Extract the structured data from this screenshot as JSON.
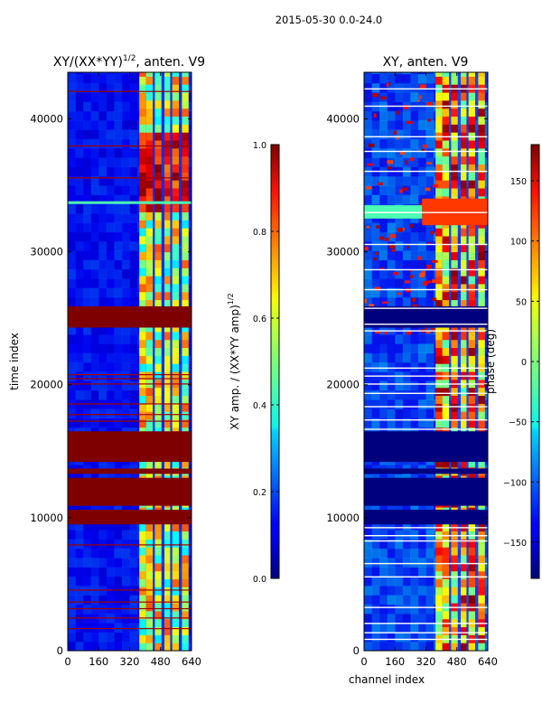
{
  "suptitle": "2015-05-30 0.0-24.0",
  "chart_data": [
    {
      "type": "heatmap",
      "title": "XY/(XX*YY)^1/2, anten. V9",
      "title_main": "XY/(XX*YY)",
      "title_sup": "1/2",
      "title_tail": ", anten. V9",
      "xlabel": "",
      "ylabel": "time index",
      "xlim": [
        0,
        640
      ],
      "ylim": [
        0,
        43500
      ],
      "xticks": [
        0,
        160,
        320,
        480,
        640
      ],
      "yticks": [
        0,
        10000,
        20000,
        30000,
        40000
      ],
      "colormap": "jet",
      "colorbar": {
        "label": "XY amp. / (XX*YY amp)^1/2",
        "label_main": "XY amp. / (XX*YY amp)",
        "label_sup": "1/2",
        "range": [
          0.0,
          1.0
        ],
        "ticks": [
          "0.0",
          "0.2",
          "0.4",
          "0.6",
          "0.8",
          "1.0"
        ]
      },
      "flagged_time_bands": [
        [
          9500,
          10600
        ],
        [
          10900,
          13000
        ],
        [
          13300,
          13700
        ],
        [
          14200,
          16500
        ],
        [
          24300,
          25900
        ]
      ],
      "flagged_time_rows": [
        1700,
        2500,
        3200,
        3700,
        4600,
        8000,
        17300,
        17800,
        18600,
        20100,
        20500,
        20800,
        35600,
        38000,
        42100
      ],
      "bright_channel_range": [
        370,
        640
      ],
      "saturated_time_range": [
        32500,
        38500
      ]
    },
    {
      "type": "heatmap",
      "title": "XY, anten. V9",
      "xlabel": "channel index",
      "ylabel": "",
      "xlim": [
        0,
        640
      ],
      "ylim": [
        0,
        43500
      ],
      "xticks": [
        0,
        160,
        320,
        480,
        640
      ],
      "yticks": [
        0,
        10000,
        20000,
        30000,
        40000
      ],
      "colormap": "jet",
      "colorbar": {
        "label": "phase (deg)",
        "range": [
          -180,
          180
        ],
        "ticks": [
          "−150",
          "−100",
          "−50",
          "0",
          "50",
          "100",
          "150"
        ]
      },
      "flagged_time_bands": [
        [
          9500,
          10600
        ],
        [
          10900,
          13000
        ],
        [
          13300,
          13700
        ],
        [
          14200,
          16500
        ],
        [
          24300,
          25900
        ]
      ],
      "white_time_rows": [
        900,
        1400,
        2100,
        3300,
        5600,
        6600,
        8300,
        8700,
        9300,
        16700,
        17400,
        18400,
        19400,
        20100,
        20700,
        21300,
        24100,
        24600,
        25800,
        27200,
        28700,
        30600,
        33000,
        36100,
        37600,
        38700,
        41000,
        42300
      ],
      "bright_channel_range": [
        370,
        640
      ]
    }
  ]
}
